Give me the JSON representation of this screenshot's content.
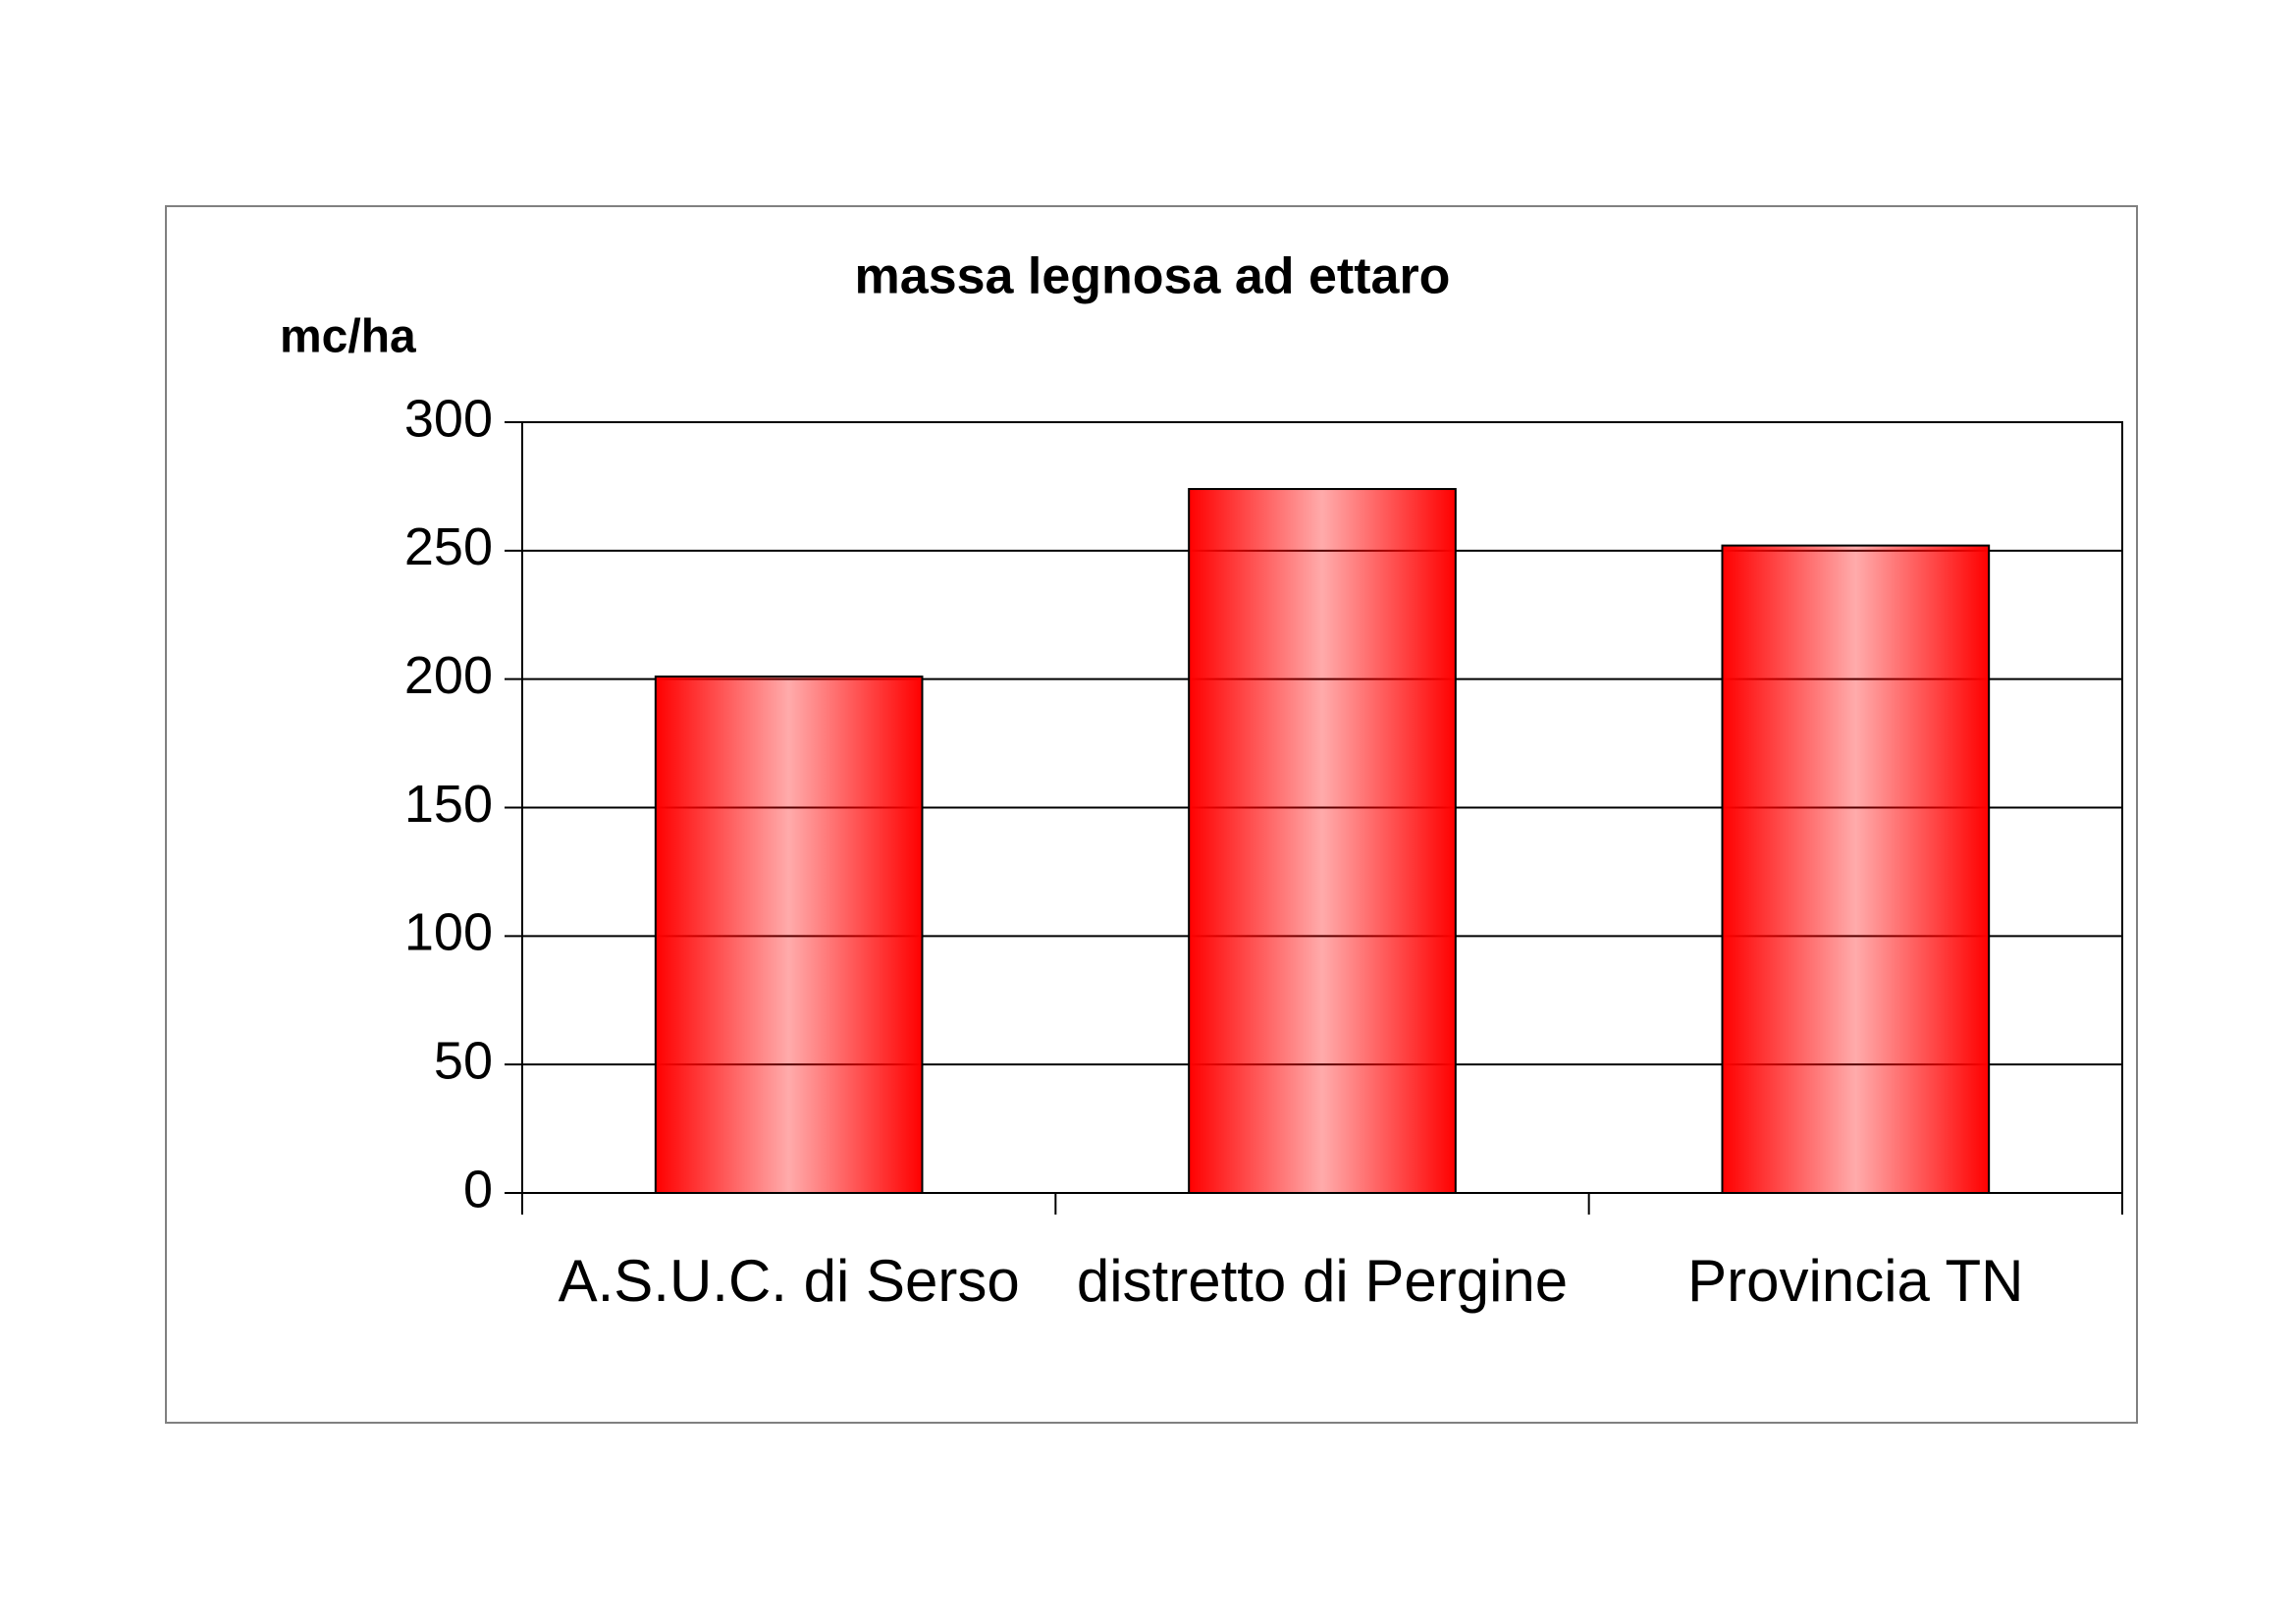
{
  "chart_data": {
    "type": "bar",
    "title": "massa legnosa ad ettaro",
    "y_label": "mc/ha",
    "categories": [
      "A.S.U.C. di Serso",
      "distretto di Pergine",
      "Provincia TN"
    ],
    "values": [
      201,
      274,
      252
    ],
    "color": "#ff0000",
    "ylim": [
      0,
      300
    ],
    "yticks": [
      0,
      50,
      100,
      150,
      200,
      250,
      300
    ],
    "grid": true
  }
}
